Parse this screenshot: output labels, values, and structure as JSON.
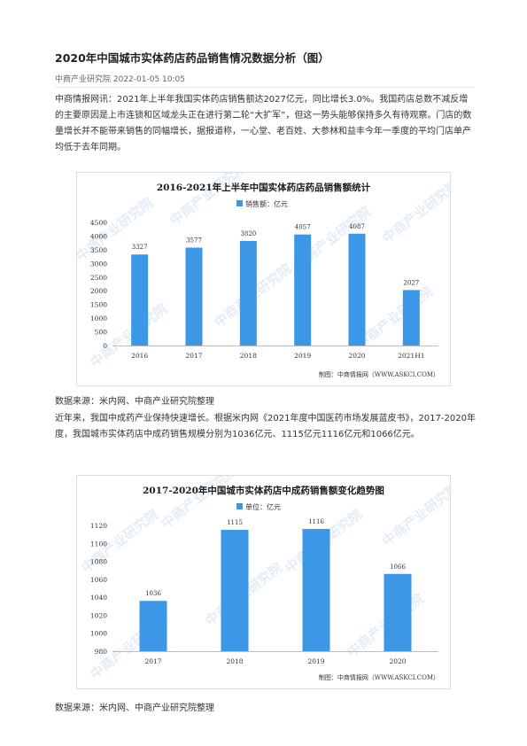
{
  "article": {
    "title": "2020年中国城市实体药店药品销售情况数据分析（图）",
    "meta": "中商产业研究院 2022-01-05 10:05",
    "para1": "中商情报网讯：2021年上半年我国实体药店销售额达2027亿元，同比增长3.0%。我国药店总数不减反增的主要原因是上市连锁和区域龙头正在进行第二轮“大扩军”，但这一势头能够保持多久有待观察。门店的数量增长并不能带来销售的同幅增长，据报道称，一心堂、老百姓、大参林和益丰今年一季度的平均门店单产均低于去年同期。",
    "source1": "数据来源：米内网、中商产业研究院整理",
    "para2": "近年来，我国中成药产业保持快速增长。根据米内网《2021年度中国医药市场发展蓝皮书》，2017-2020年度，我国城市实体药店中成药销售规模分别为1036亿元、1115亿元1116亿元和1066亿元。",
    "source2": "数据来源：米内网、中商产业研究院整理"
  },
  "charts": {
    "watermark": "中商产业研究院",
    "bar_color": "#3d97e7",
    "chart1_credit": "制图：中商情报网（WWW.ASKCI.COM）",
    "chart2_credit": "制图：中商情报网（WWW.ASKCI.COM）"
  },
  "chart_data": [
    {
      "type": "bar",
      "title": "2016-2021年上半年中国实体药店药品销售额统计",
      "legend": "销售额：亿元",
      "categories": [
        "2016",
        "2017",
        "2018",
        "2019",
        "2020",
        "2021H1"
      ],
      "series": [
        {
          "name": "销售额：亿元",
          "values": [
            3327,
            3577,
            3820,
            4057,
            4087,
            2027
          ]
        }
      ],
      "ylim": [
        0,
        4500
      ],
      "yticks": [
        0,
        500,
        1000,
        1500,
        2000,
        2500,
        3000,
        3500,
        4000,
        4500
      ],
      "grid": false,
      "legend_position": "top"
    },
    {
      "type": "bar",
      "title": "2017-2020年中国城市实体药店中成药销售额变化趋势图",
      "legend": "单位：亿元",
      "categories": [
        "2017",
        "2018",
        "2019",
        "2020"
      ],
      "series": [
        {
          "name": "单位：亿元",
          "values": [
            1036,
            1115,
            1116,
            1066
          ]
        }
      ],
      "ylim": [
        980,
        1120
      ],
      "yticks": [
        980,
        1000,
        1020,
        1040,
        1060,
        1080,
        1100,
        1120
      ],
      "grid": false,
      "legend_position": "top"
    }
  ]
}
